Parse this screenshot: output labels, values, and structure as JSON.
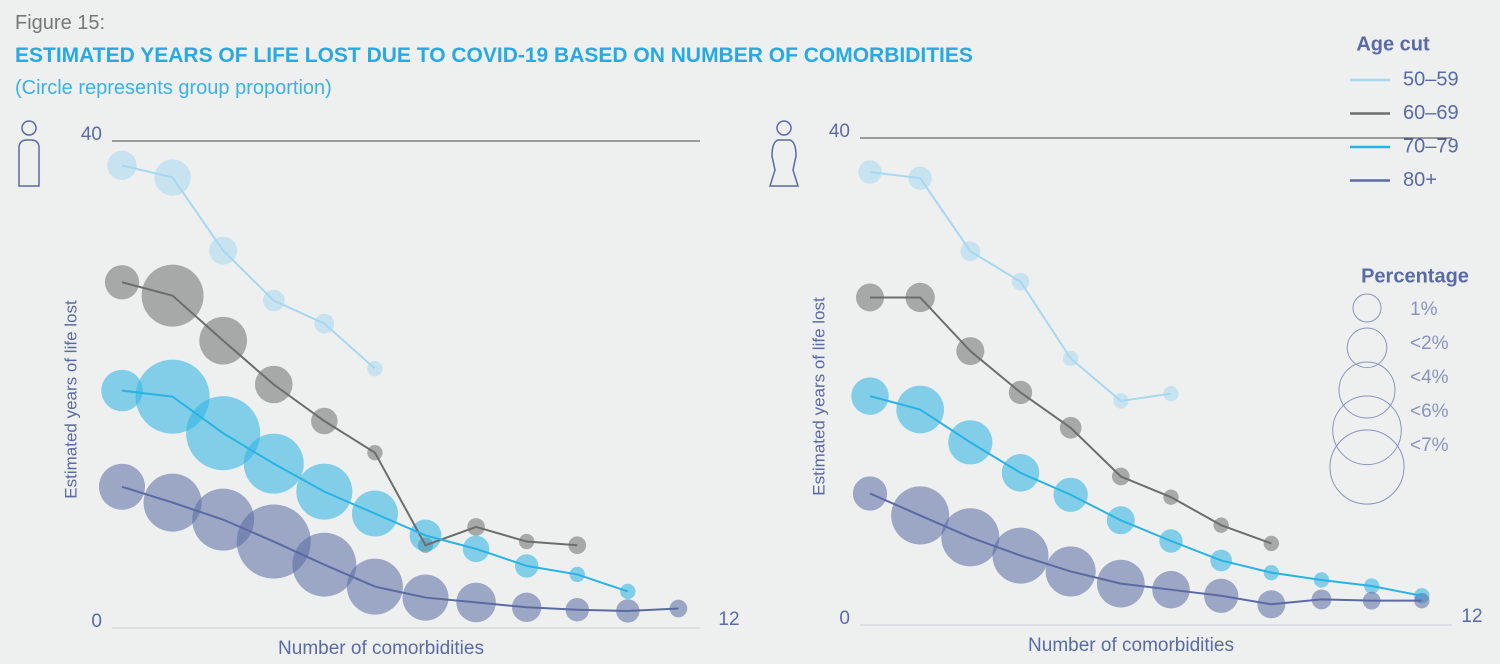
{
  "figure_label": "Figure 15:",
  "title": "ESTIMATED YEARS OF LIFE LOST DUE TO COVID-19 BASED ON NUMBER OF COMORBIDITIES",
  "subtitle": "(Circle represents group proportion)",
  "chart_data": [
    {
      "type": "bubble",
      "xlabel": "Number of comorbidities",
      "ylabel": "Estimated years of life lost",
      "x": [
        0,
        1,
        2,
        3,
        4,
        5,
        6,
        7,
        8,
        9,
        10,
        11
      ],
      "xlim": [
        0,
        12
      ],
      "xticks": [
        12
      ],
      "ylim": [
        0,
        40
      ],
      "yticks": [
        0,
        40
      ],
      "legend_title": "Age cut",
      "size_legend": {
        "title": "Percentage",
        "items": [
          {
            "value": 1,
            "label": "1%"
          },
          {
            "value": 2,
            "label": "<2%"
          },
          {
            "value": 4,
            "label": "<4%"
          },
          {
            "value": 6,
            "label": "<6%"
          },
          {
            "value": 7,
            "label": "<7%"
          }
        ]
      },
      "series": [
        {
          "name": "50–59",
          "color": "#a8d8ef",
          "values": [
            38.0,
            37.0,
            31.0,
            26.9,
            25.0,
            21.3,
            null,
            null,
            null,
            null,
            null,
            null
          ],
          "sizes": [
            1.1,
            1.7,
            1.0,
            0.6,
            0.5,
            0.3,
            null,
            null,
            null,
            null,
            null,
            null
          ]
        },
        {
          "name": "60–69",
          "color": "#6d6d6d",
          "values": [
            28.4,
            27.3,
            23.6,
            20.0,
            17.0,
            14.4,
            6.8,
            8.3,
            7.1,
            6.8,
            null,
            null
          ],
          "sizes": [
            1.5,
            4.9,
            2.9,
            1.8,
            0.9,
            0.3,
            0.3,
            0.4,
            0.3,
            0.4,
            null,
            null
          ]
        },
        {
          "name": "70–79",
          "color": "#29b3e3",
          "values": [
            19.5,
            19.0,
            16.0,
            13.5,
            11.2,
            9.4,
            7.6,
            6.5,
            5.1,
            4.4,
            3.0,
            null
          ],
          "sizes": [
            2.2,
            7.0,
            7.0,
            4.6,
            4.0,
            2.7,
            1.3,
            0.9,
            0.7,
            0.3,
            0.3,
            null
          ]
        },
        {
          "name": "80+",
          "color": "#5a6aa3",
          "values": [
            11.6,
            10.3,
            8.9,
            7.1,
            5.2,
            3.4,
            2.5,
            2.1,
            1.7,
            1.5,
            1.4,
            1.6
          ],
          "sizes": [
            2.7,
            4.3,
            4.9,
            7.0,
            5.2,
            4.0,
            2.7,
            2.0,
            1.1,
            0.7,
            0.7,
            0.4
          ]
        }
      ]
    },
    {
      "type": "bubble",
      "xlabel": "Number of comorbidities",
      "ylabel": "Estimated years of life lost",
      "x": [
        0,
        1,
        2,
        3,
        4,
        5,
        6,
        7,
        8,
        9,
        10,
        11
      ],
      "xlim": [
        0,
        12
      ],
      "xticks": [
        12
      ],
      "ylim": [
        0,
        40
      ],
      "yticks": [
        0,
        40
      ],
      "series": [
        {
          "color": "#a8d8ef",
          "values": [
            37.2,
            36.7,
            30.7,
            28.2,
            21.9,
            18.4,
            19.0,
            null,
            null,
            null,
            null,
            null
          ],
          "sizes": [
            0.7,
            0.7,
            0.5,
            0.4,
            0.3,
            0.3,
            0.3,
            null,
            null,
            null,
            null,
            null
          ]
        },
        {
          "color": "#6d6d6d",
          "values": [
            26.9,
            26.9,
            22.5,
            19.1,
            16.2,
            12.2,
            10.5,
            8.2,
            6.7,
            null,
            null,
            null
          ],
          "sizes": [
            1.0,
            1.1,
            1.0,
            0.7,
            0.6,
            0.4,
            0.3,
            0.3,
            0.3,
            null,
            null,
            null
          ]
        },
        {
          "color": "#29b3e3",
          "values": [
            18.8,
            17.7,
            15.0,
            12.5,
            10.7,
            8.6,
            6.9,
            5.3,
            4.3,
            3.7,
            3.2,
            2.4
          ],
          "sizes": [
            1.8,
            2.9,
            2.5,
            1.8,
            1.5,
            1.0,
            0.7,
            0.6,
            0.3,
            0.3,
            0.3,
            0.3
          ]
        },
        {
          "color": "#5a6aa3",
          "values": [
            10.8,
            9.0,
            7.2,
            5.7,
            4.4,
            3.4,
            2.9,
            2.4,
            1.7,
            2.1,
            2.0,
            2.0
          ],
          "sizes": [
            1.5,
            4.3,
            4.3,
            4.0,
            3.2,
            2.9,
            1.8,
            1.5,
            1.0,
            0.5,
            0.4,
            0.3
          ]
        }
      ]
    }
  ]
}
